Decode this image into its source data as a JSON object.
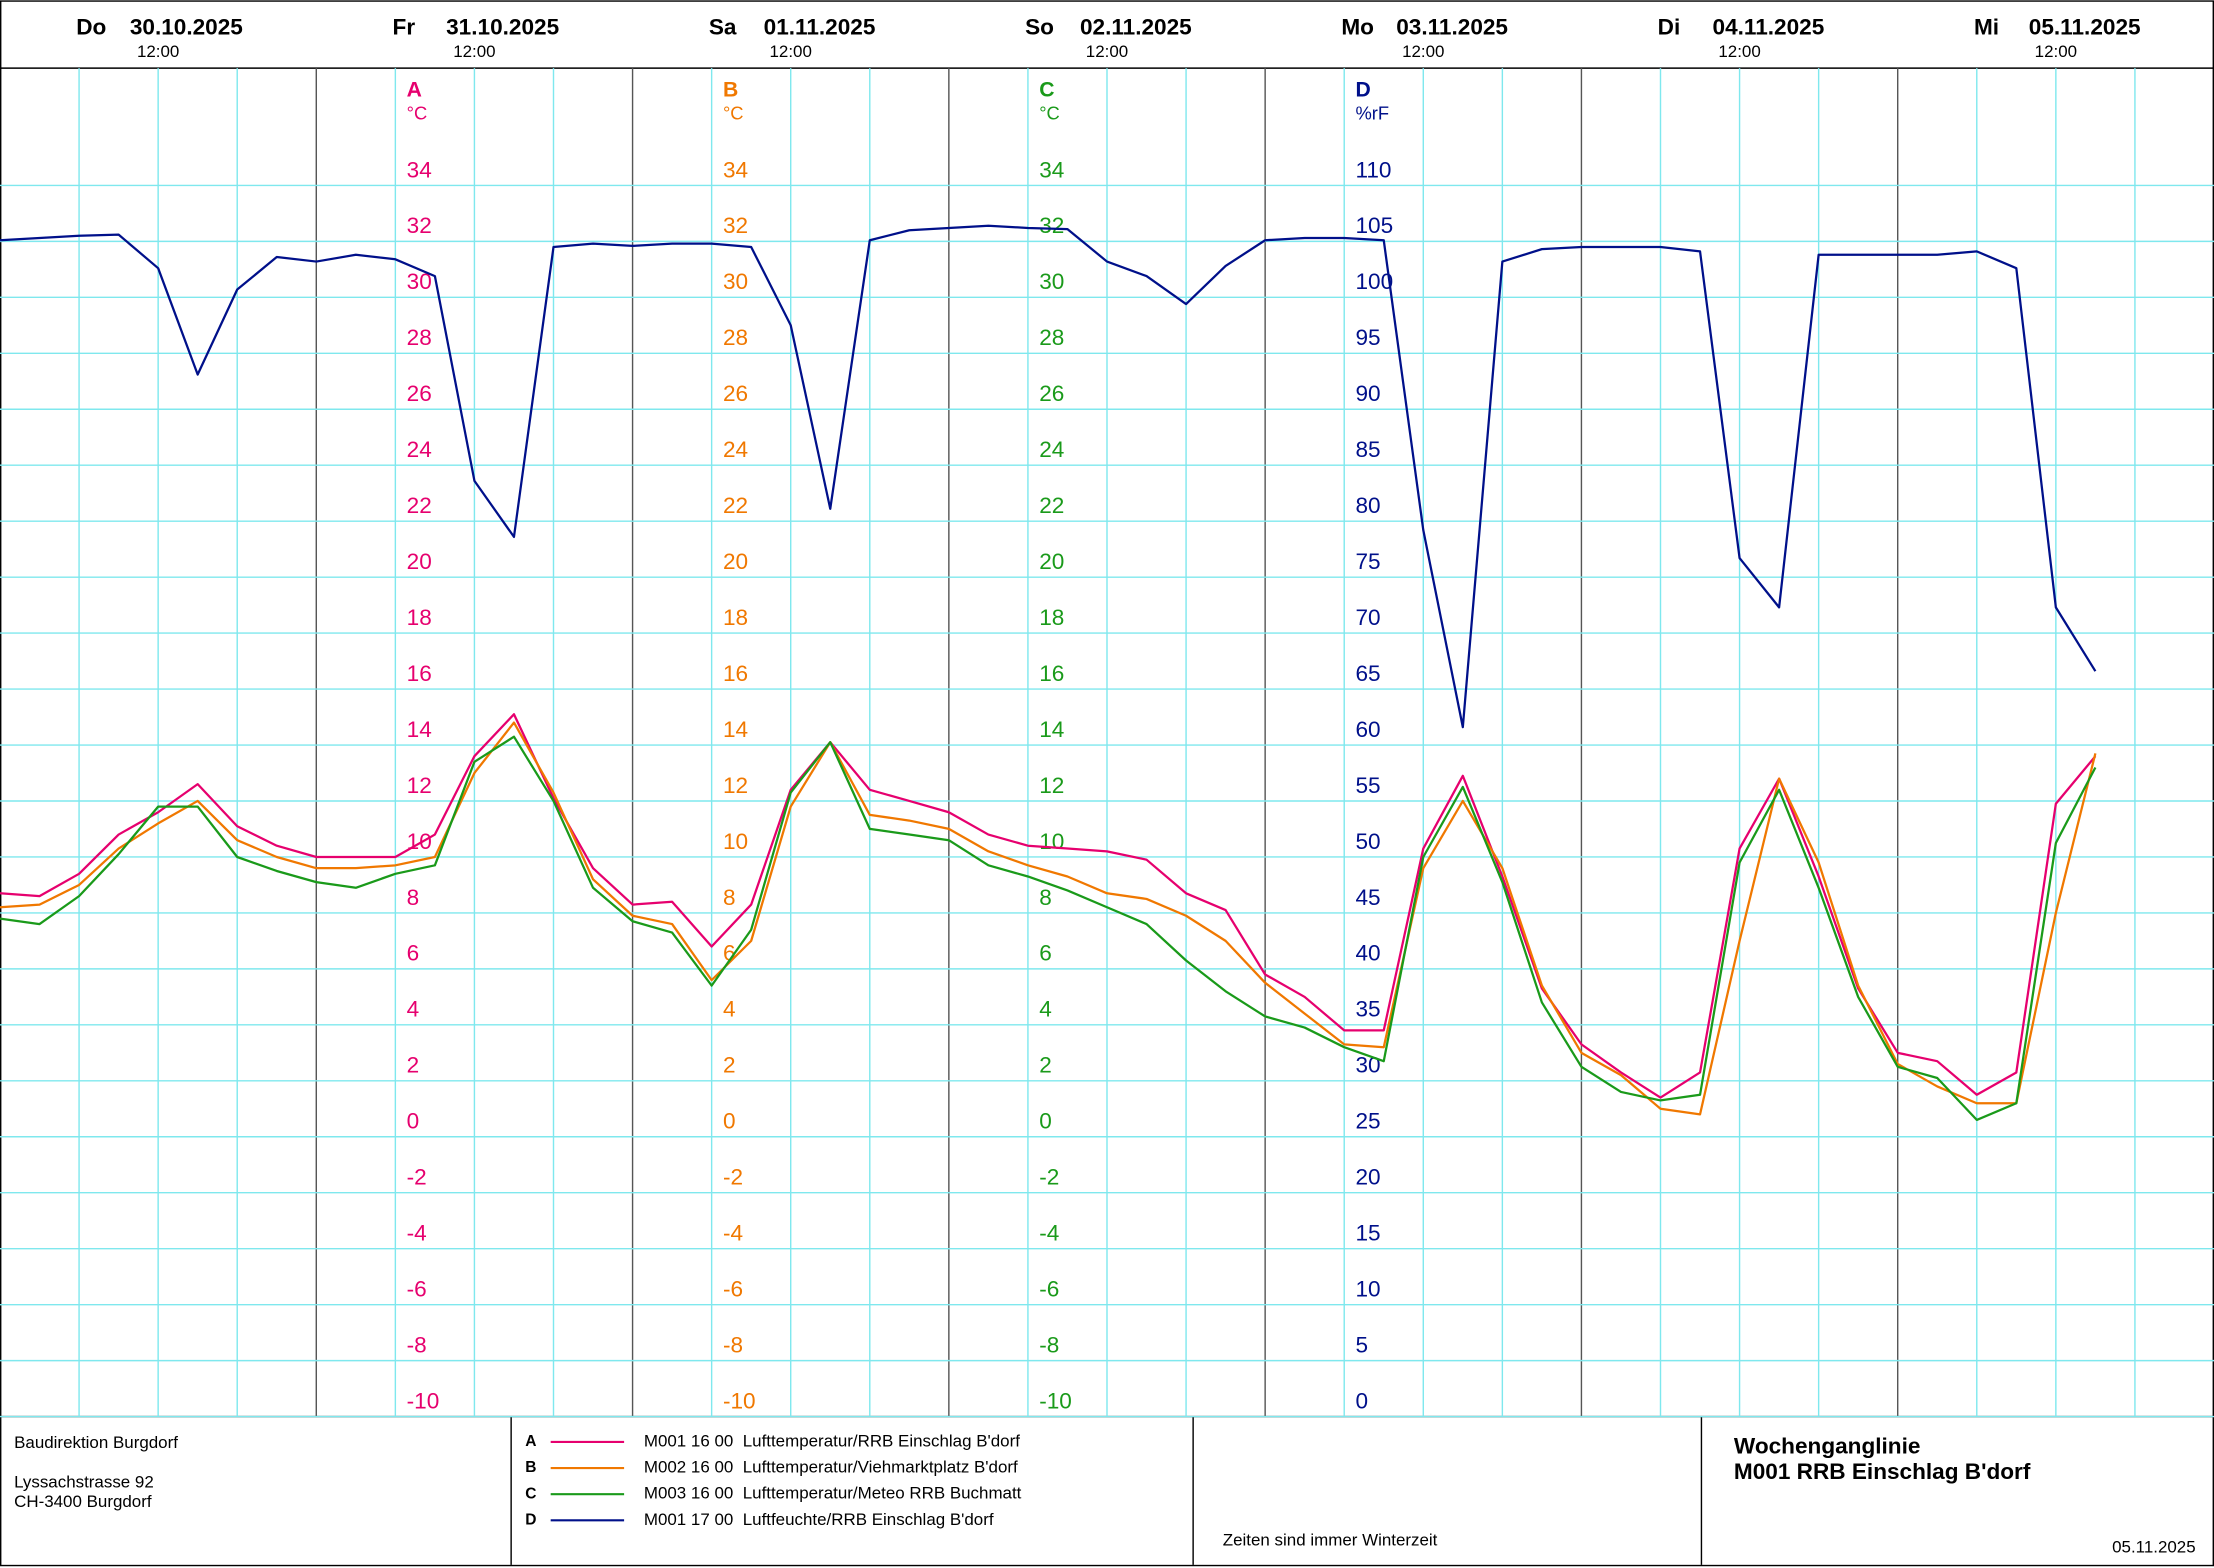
{
  "chart_data": {
    "type": "line",
    "days": [
      {
        "weekday": "Do",
        "date": "30.10.2025",
        "time": "12:00"
      },
      {
        "weekday": "Fr",
        "date": "31.10.2025",
        "time": "12:00"
      },
      {
        "weekday": "Sa",
        "date": "01.11.2025",
        "time": "12:00"
      },
      {
        "weekday": "So",
        "date": "02.11.2025",
        "time": "12:00"
      },
      {
        "weekday": "Mo",
        "date": "03.11.2025",
        "time": "12:00"
      },
      {
        "weekday": "Di",
        "date": "04.11.2025",
        "time": "12:00"
      },
      {
        "weekday": "Mi",
        "date": "05.11.2025",
        "time": "12:00"
      }
    ],
    "xlim": [
      "30.10.2025 00:00",
      "06.11.2025 00:00"
    ],
    "x": [
      "30.10.2025 00:00",
      "30.10.2025 03:00",
      "30.10.2025 06:00",
      "30.10.2025 09:00",
      "30.10.2025 12:00",
      "30.10.2025 15:00",
      "30.10.2025 18:00",
      "30.10.2025 21:00",
      "31.10.2025 00:00",
      "31.10.2025 03:00",
      "31.10.2025 06:00",
      "31.10.2025 09:00",
      "31.10.2025 12:00",
      "31.10.2025 15:00",
      "31.10.2025 18:00",
      "31.10.2025 21:00",
      "01.11.2025 00:00",
      "01.11.2025 03:00",
      "01.11.2025 06:00",
      "01.11.2025 09:00",
      "01.11.2025 12:00",
      "01.11.2025 15:00",
      "01.11.2025 18:00",
      "01.11.2025 21:00",
      "02.11.2025 00:00",
      "02.11.2025 03:00",
      "02.11.2025 06:00",
      "02.11.2025 09:00",
      "02.11.2025 12:00",
      "02.11.2025 15:00",
      "02.11.2025 18:00",
      "02.11.2025 21:00",
      "03.11.2025 00:00",
      "03.11.2025 03:00",
      "03.11.2025 06:00",
      "03.11.2025 09:00",
      "03.11.2025 12:00",
      "03.11.2025 15:00",
      "03.11.2025 18:00",
      "03.11.2025 21:00",
      "04.11.2025 00:00",
      "04.11.2025 03:00",
      "04.11.2025 06:00",
      "04.11.2025 09:00",
      "04.11.2025 12:00",
      "04.11.2025 15:00",
      "04.11.2025 18:00",
      "04.11.2025 21:00",
      "05.11.2025 00:00",
      "05.11.2025 03:00",
      "05.11.2025 06:00",
      "05.11.2025 09:00",
      "05.11.2025 12:00",
      "05.11.2025 15:00"
    ],
    "ylim": [
      -10,
      38
    ],
    "yticks": [
      -10,
      -8,
      -6,
      -4,
      -2,
      0,
      2,
      4,
      6,
      8,
      10,
      12,
      14,
      16,
      18,
      20,
      22,
      24,
      26,
      28,
      30,
      32,
      34
    ],
    "y2lim": [
      0,
      120
    ],
    "y2ticks": [
      0,
      5,
      10,
      15,
      20,
      25,
      30,
      35,
      40,
      45,
      50,
      55,
      60,
      65,
      70,
      75,
      80,
      85,
      90,
      95,
      100,
      105,
      110
    ],
    "grid": true,
    "series": [
      {
        "key": "A",
        "unit": "°C",
        "name": "M001 16 00  Lufttemperatur/RRB Einschlag B'dorf",
        "color": "#e6006e",
        "values": [
          8.7,
          8.6,
          9.4,
          10.8,
          11.6,
          12.6,
          11.1,
          10.4,
          10.0,
          10.0,
          10.0,
          10.8,
          13.6,
          15.1,
          12.1,
          9.6,
          8.3,
          8.4,
          6.8,
          8.3,
          12.4,
          14.1,
          12.4,
          12.0,
          11.6,
          10.8,
          10.4,
          10.3,
          10.2,
          9.9,
          8.7,
          8.1,
          5.8,
          5.0,
          3.8,
          3.8,
          10.3,
          12.9,
          9.3,
          5.3,
          3.3,
          2.3,
          1.4,
          2.3,
          10.3,
          12.8,
          9.3,
          5.3,
          3.0,
          2.7,
          1.5,
          2.3,
          11.9,
          13.6
        ]
      },
      {
        "key": "B",
        "unit": "°C",
        "name": "M002 16 00  Lufttemperatur/Viehmarktplatz B'dorf",
        "color": "#f07800",
        "values": [
          8.2,
          8.3,
          9.0,
          10.3,
          11.2,
          12.0,
          10.6,
          10.0,
          9.6,
          9.6,
          9.7,
          10.0,
          13.0,
          14.8,
          12.3,
          9.2,
          7.9,
          7.6,
          5.6,
          7.0,
          11.8,
          14.1,
          11.5,
          11.3,
          11.0,
          10.2,
          9.7,
          9.3,
          8.7,
          8.5,
          7.9,
          7.0,
          5.5,
          4.4,
          3.3,
          3.2,
          9.6,
          12.0,
          9.6,
          5.4,
          3.0,
          2.2,
          1.0,
          0.8,
          7.0,
          12.8,
          9.8,
          5.4,
          2.6,
          1.8,
          1.2,
          1.2,
          8.0,
          13.7
        ]
      },
      {
        "key": "C",
        "unit": "°C",
        "name": "M003 16 00  Lufttemperatur/Meteo RRB Buchmatt",
        "color": "#1a9a1a",
        "values": [
          7.8,
          7.6,
          8.6,
          10.1,
          11.8,
          11.8,
          10.0,
          9.5,
          9.1,
          8.9,
          9.4,
          9.7,
          13.4,
          14.3,
          12.0,
          8.9,
          7.7,
          7.3,
          5.4,
          7.4,
          12.3,
          14.1,
          11.0,
          10.8,
          10.6,
          9.7,
          9.3,
          8.8,
          8.2,
          7.6,
          6.3,
          5.2,
          4.3,
          3.9,
          3.2,
          2.7,
          10.0,
          12.5,
          9.1,
          4.8,
          2.5,
          1.6,
          1.3,
          1.5,
          9.8,
          12.4,
          8.9,
          5.0,
          2.5,
          2.1,
          0.6,
          1.2,
          10.5,
          13.2
        ]
      },
      {
        "key": "D",
        "unit": "%rF",
        "name": "M001 17 00  Luftfeuchte/RRB Einschlag B'dorf",
        "color": "#00108a",
        "axis": "y2",
        "values": [
          105.1,
          105.3,
          105.5,
          105.6,
          102.6,
          93.1,
          100.7,
          103.6,
          103.2,
          103.8,
          103.4,
          101.9,
          83.6,
          78.6,
          104.5,
          104.8,
          104.6,
          104.8,
          104.8,
          104.5,
          97.5,
          81.1,
          105.1,
          106.0,
          106.2,
          106.4,
          106.2,
          106.1,
          103.2,
          101.9,
          99.4,
          102.8,
          105.1,
          105.3,
          105.3,
          105.1,
          79.2,
          61.6,
          103.2,
          104.3,
          104.5,
          104.5,
          104.5,
          104.1,
          76.7,
          72.3,
          103.8,
          103.8,
          103.8,
          103.8,
          104.1,
          102.6,
          72.3,
          66.6
        ]
      }
    ]
  },
  "footer": {
    "organization": "Baudirektion Burgdorf",
    "street": "Lyssachstrasse 92",
    "city": "CH-3400 Burgdorf",
    "note": "Zeiten sind immer Winterzeit",
    "title": "Wochenganglinie",
    "subtitle": "M001 RRB Einschlag B'dorf",
    "date": "05.11.2025"
  }
}
